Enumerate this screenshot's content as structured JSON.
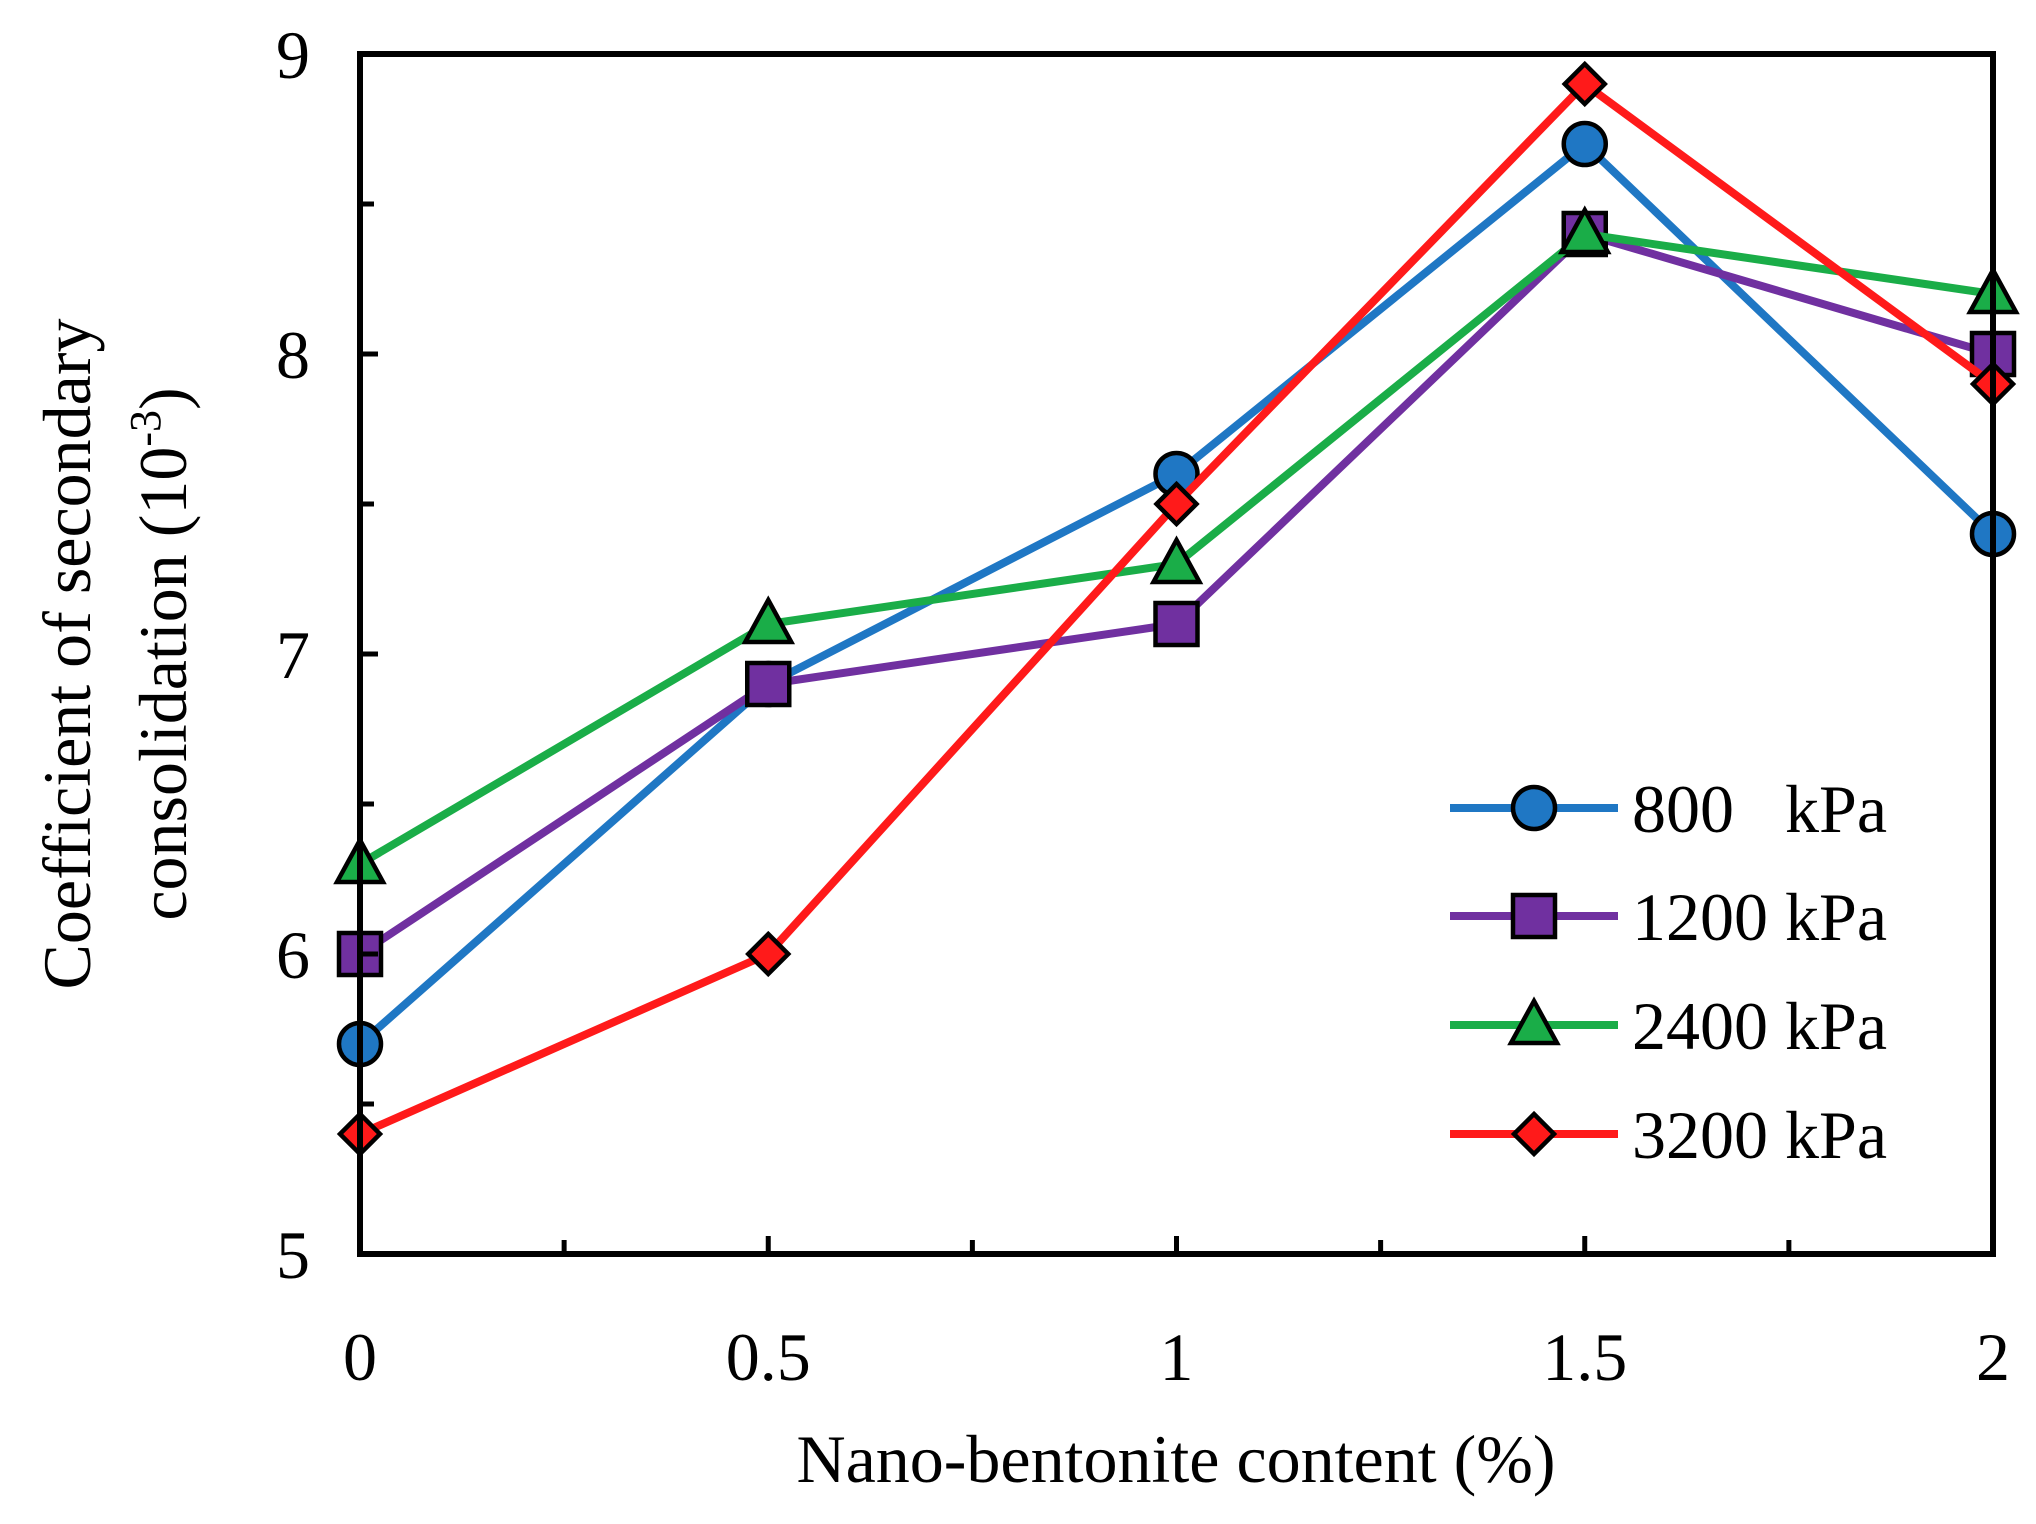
{
  "chart_data": {
    "type": "line",
    "title": "",
    "xlabel": "Nano-bentonite content (%)",
    "ylabel": {
      "line1": "Coefficient of secondary",
      "line2_prefix": "consolidation (10",
      "line2_exponent": "-3",
      "line2_suffix": ")"
    },
    "x": [
      0,
      0.5,
      1,
      1.5,
      2
    ],
    "xlim": [
      0,
      2
    ],
    "ylim": [
      5,
      9
    ],
    "x_ticks": [
      {
        "value": 0,
        "label": "0"
      },
      {
        "value": 0.5,
        "label": "0.5"
      },
      {
        "value": 1,
        "label": "1"
      },
      {
        "value": 1.5,
        "label": "1.5"
      },
      {
        "value": 2,
        "label": "2"
      }
    ],
    "x_minor_ticks": [
      0.25,
      0.75,
      1.25,
      1.75
    ],
    "y_ticks": [
      {
        "value": 5,
        "label": "5"
      },
      {
        "value": 6,
        "label": "6"
      },
      {
        "value": 7,
        "label": "7"
      },
      {
        "value": 8,
        "label": "8"
      },
      {
        "value": 9,
        "label": "9"
      }
    ],
    "y_minor_ticks": [
      5.5,
      6.5,
      7.5,
      8.5
    ],
    "grid": false,
    "legend_position": "bottom-right",
    "series": [
      {
        "name": "800   kPa",
        "key": "800kpa",
        "color": "#1f77c4",
        "marker": "circle",
        "values": [
          5.7,
          6.9,
          7.6,
          8.7,
          7.4
        ]
      },
      {
        "name": "1200 kPa",
        "key": "1200kpa",
        "color": "#7030a0",
        "marker": "square",
        "values": [
          6.0,
          6.9,
          7.1,
          8.4,
          8.0
        ]
      },
      {
        "name": "2400 kPa",
        "key": "2400kpa",
        "color": "#1aad48",
        "marker": "triangle",
        "values": [
          6.3,
          7.1,
          7.3,
          8.4,
          8.2
        ]
      },
      {
        "name": "3200 kPa",
        "key": "3200kpa",
        "color": "#ff1a1a",
        "marker": "diamond",
        "values": [
          5.4,
          6.0,
          7.5,
          8.9,
          7.9
        ]
      }
    ]
  }
}
